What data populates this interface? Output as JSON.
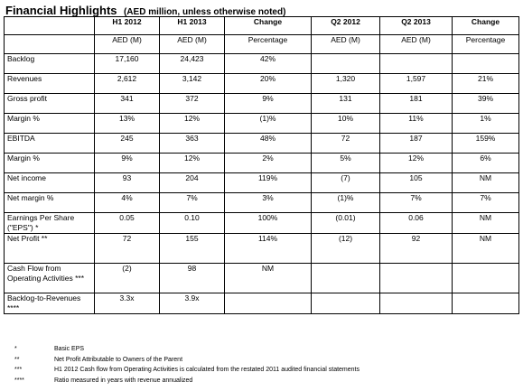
{
  "title": {
    "main": "Financial Highlights",
    "sub": "(AED million, unless otherwise noted)"
  },
  "table": {
    "headers": [
      "",
      "H1 2012",
      "H1 2013",
      "Change",
      "Q2 2012",
      "Q2 2013",
      "Change"
    ],
    "units": [
      "",
      "AED (M)",
      "AED (M)",
      "Percentage",
      "AED (M)",
      "AED (M)",
      "Percentage"
    ],
    "rows": [
      [
        "Backlog",
        "17,160",
        "24,423",
        "42%",
        "",
        "",
        ""
      ],
      [
        "Revenues",
        "2,612",
        "3,142",
        "20%",
        "1,320",
        "1,597",
        "21%"
      ],
      [
        "Gross profit",
        "341",
        "372",
        "9%",
        "131",
        "181",
        "39%"
      ],
      [
        "Margin %",
        "13%",
        "12%",
        "(1)%",
        "10%",
        "11%",
        "1%"
      ],
      [
        "EBITDA",
        "245",
        "363",
        "48%",
        "72",
        "187",
        "159%"
      ],
      [
        "Margin %",
        "9%",
        "12%",
        "2%",
        "5%",
        "12%",
        "6%"
      ],
      [
        "Net income",
        "93",
        "204",
        "119%",
        "(7)",
        "105",
        "NM"
      ],
      [
        "Net margin %",
        "4%",
        "7%",
        "3%",
        "(1)%",
        "7%",
        "7%"
      ],
      [
        "Earnings Per Share (\"EPS\") *",
        "0.05",
        "0.10",
        "100%",
        "(0.01)",
        "0.06",
        "NM"
      ],
      [
        "Net Profit **",
        "72",
        "155",
        "114%",
        "(12)",
        "92",
        "NM"
      ],
      [
        "Cash Flow from Operating Activities ***",
        "(2)",
        "98",
        "NM",
        "",
        "",
        ""
      ],
      [
        "Backlog-to-Revenues ****",
        "3.3x",
        "3.9x",
        "",
        "",
        "",
        ""
      ]
    ]
  },
  "footnotes": [
    {
      "mark": "*",
      "text": "Basic EPS"
    },
    {
      "mark": "**",
      "text": "Net Profit Attributable to Owners of the Parent"
    },
    {
      "mark": "***",
      "text": "H1 2012 Cash flow from Operating Activities is calculated from the restated 2011 audited financial statements"
    },
    {
      "mark": "****",
      "text": "Ratio measured in years with revenue annualized"
    }
  ]
}
